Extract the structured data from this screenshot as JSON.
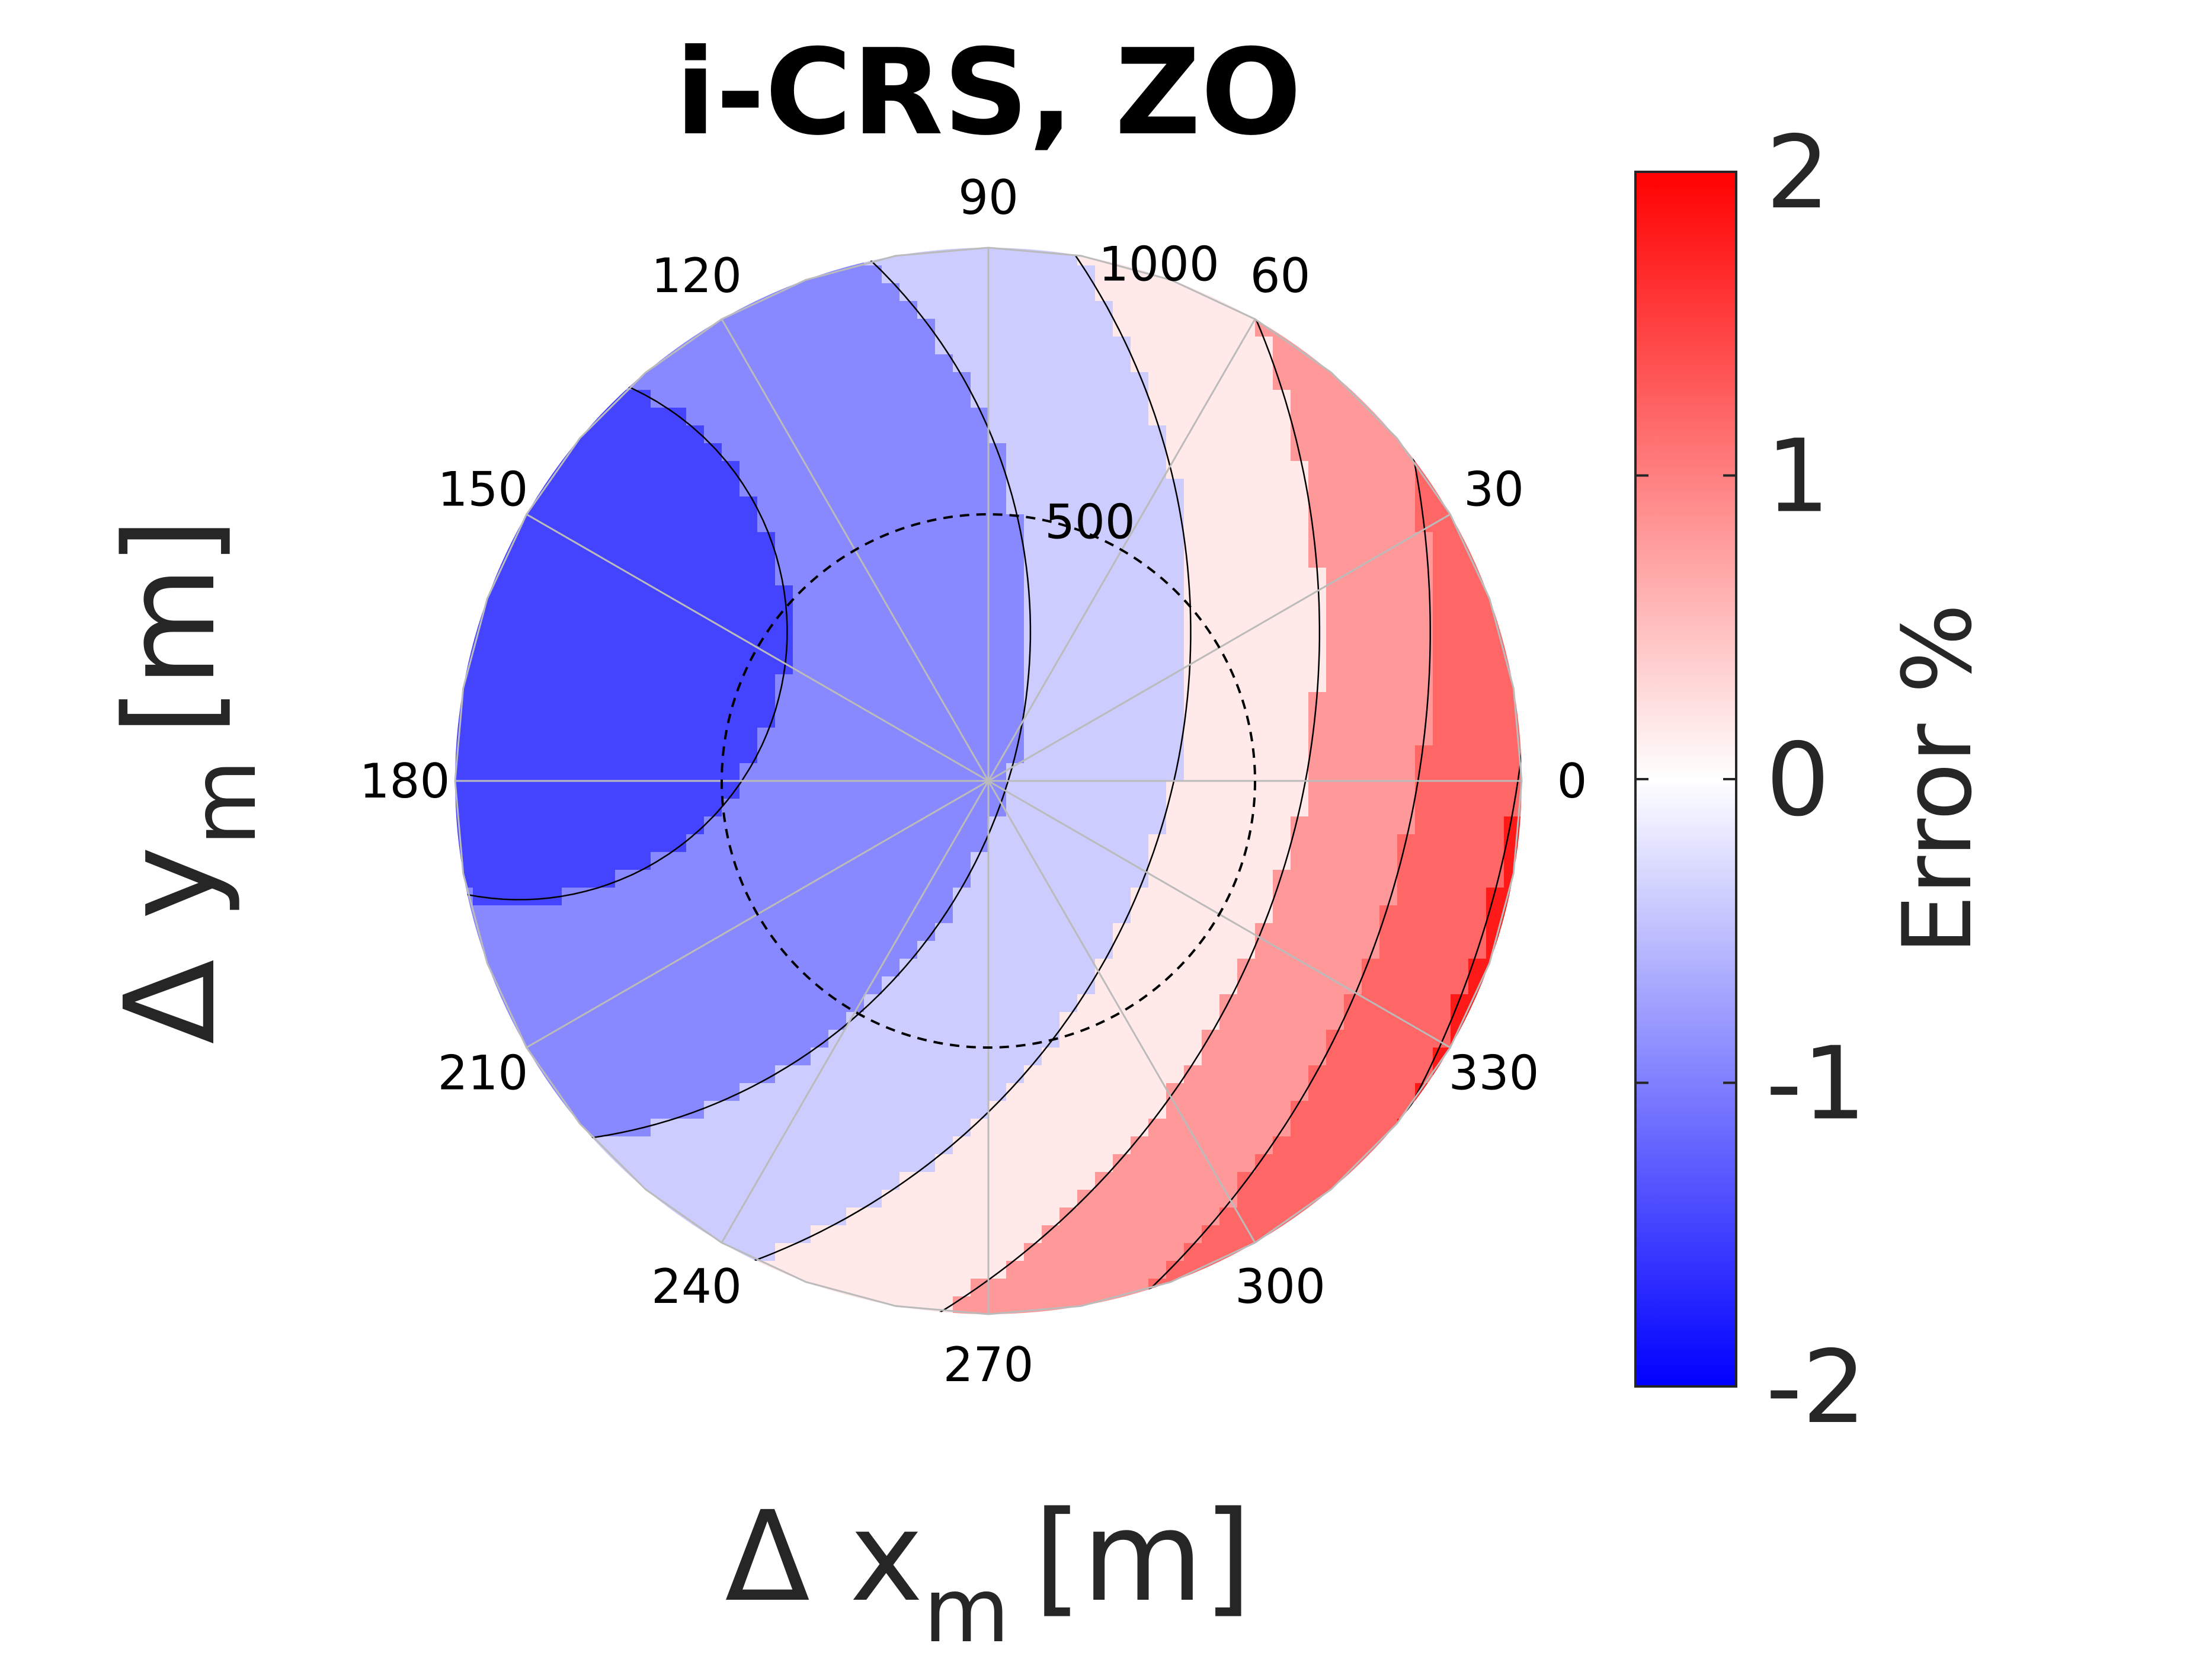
{
  "chart_data": {
    "type": "polar-contour",
    "title": "i-CRS, ZO",
    "xlabel": {
      "main": "Δ x",
      "sub": "m",
      "unit": "[m]"
    },
    "ylabel": {
      "main": "Δ y",
      "sub": "m",
      "unit": "[m]"
    },
    "angle_ticks": [
      "0",
      "30",
      "60",
      "90",
      "120",
      "150",
      "180",
      "210",
      "240",
      "270",
      "300",
      "330"
    ],
    "angle_values": [
      0,
      30,
      60,
      90,
      120,
      150,
      180,
      210,
      240,
      270,
      300,
      330
    ],
    "radial_ticks": [
      "500",
      "1000"
    ],
    "radial_values": [
      500,
      1000
    ],
    "rlim": [
      0,
      1000
    ],
    "grid": true,
    "reference_circle_radius": 500,
    "colorbar": {
      "label": "Error %",
      "ticks": [
        "2",
        "1",
        "0",
        "-1",
        "-2"
      ],
      "tick_values": [
        2,
        1,
        0,
        -1,
        -2
      ],
      "range": [
        -2,
        2
      ],
      "colors": {
        "min": "#0000ff",
        "mid": "#ffffff",
        "max": "#ff0000"
      }
    },
    "contour_levels": [
      {
        "range": [
          -2.0,
          -1.5
        ],
        "color": "#0000ff"
      },
      {
        "range": [
          -1.5,
          -1.0
        ],
        "color": "#4444ff"
      },
      {
        "range": [
          -1.0,
          -0.5
        ],
        "color": "#8888ff"
      },
      {
        "range": [
          -0.5,
          0.0
        ],
        "color": "#ccccff"
      },
      {
        "range": [
          0.0,
          0.5
        ],
        "color": "#ffe9e9"
      },
      {
        "range": [
          0.5,
          1.0
        ],
        "color": "#ff9999"
      },
      {
        "range": [
          1.0,
          1.5
        ],
        "color": "#ff6666"
      },
      {
        "range": [
          1.5,
          2.0
        ],
        "color": "#ff1a1a"
      }
    ]
  }
}
